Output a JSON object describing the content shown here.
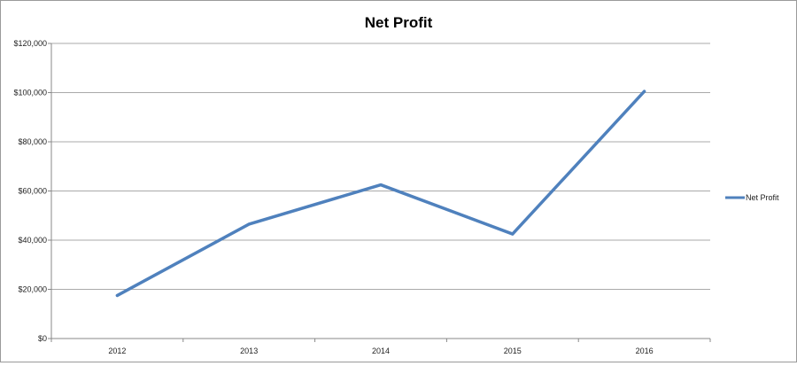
{
  "chart_data": {
    "type": "line",
    "title": "Net Profit",
    "xlabel": "",
    "ylabel": "",
    "categories": [
      "2012",
      "2013",
      "2014",
      "2015",
      "2016"
    ],
    "series": [
      {
        "name": "Net Profit",
        "values": [
          17500,
          46500,
          62500,
          42500,
          100500
        ],
        "color": "#4f81bd"
      }
    ],
    "ylim": [
      0,
      120000
    ],
    "yticks": [
      0,
      20000,
      40000,
      60000,
      80000,
      100000,
      120000
    ],
    "ytick_labels": [
      "$0",
      "$20,000",
      "$40,000",
      "$60,000",
      "$80,000",
      "$100,000",
      "$120,000"
    ],
    "grid": true,
    "legend_position": "right",
    "gridline_color": "#aaaaaa",
    "axis_color": "#888888"
  }
}
